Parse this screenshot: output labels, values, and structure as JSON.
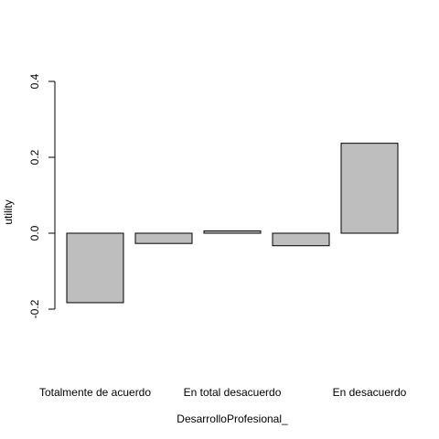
{
  "chart_data": {
    "type": "bar",
    "categories": [
      "Totalmente de acuerdo",
      "",
      "En total desacuerdo",
      "",
      "En desacuerdo"
    ],
    "values": [
      -0.183,
      -0.027,
      0.006,
      -0.033,
      0.237
    ],
    "xlabel": "DesarrolloProfesional_",
    "ylabel": "utility",
    "ylim": [
      -0.2,
      0.4
    ],
    "yticks": [
      -0.2,
      0.0,
      0.2,
      0.4
    ],
    "ytick_labels": [
      "-0.2",
      "0.0",
      "0.2",
      "0.4"
    ],
    "bar_color": "#bebebe",
    "grid": false
  }
}
